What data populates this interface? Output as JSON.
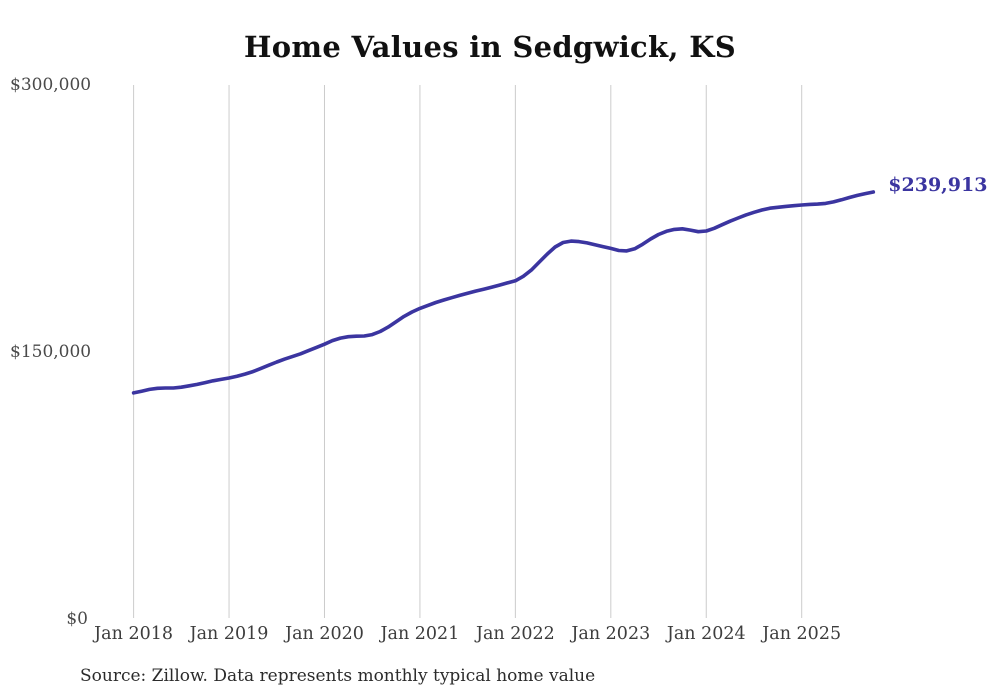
{
  "title": "Home Values in Sedgwick, KS",
  "source_note": "Source: Zillow. Data represents monthly typical home value",
  "colors": {
    "line": "#3b35a0",
    "end_label": "#3b35a0",
    "gridline": "#cccccc",
    "title_text": "#111111",
    "axis_text": "#4a4a4a"
  },
  "chart_data": {
    "type": "line",
    "title": "Home Values in Sedgwick, KS",
    "xlabel": "",
    "ylabel": "",
    "ylim": [
      0,
      300000
    ],
    "grid": "vertical-only",
    "legend": "none",
    "x_start_month": "Jan 2018",
    "x_end_month": "Oct 2025",
    "points_per_month": 1,
    "x_tick_labels": [
      "Jan 2018",
      "Jan 2019",
      "Jan 2020",
      "Jan 2021",
      "Jan 2022",
      "Jan 2023",
      "Jan 2024",
      "Jan 2025"
    ],
    "y_ticks": [
      {
        "label": "$0",
        "value": 0
      },
      {
        "label": "$150,000",
        "value": 150000
      },
      {
        "label": "$300,000",
        "value": 300000
      }
    ],
    "end_label": "$239,913",
    "final_value": 239913,
    "values": [
      127000,
      128000,
      129000,
      129600,
      129800,
      129800,
      130200,
      131000,
      131800,
      132800,
      133800,
      134600,
      135400,
      136400,
      137600,
      139000,
      140800,
      142600,
      144400,
      146000,
      147500,
      149000,
      150800,
      152600,
      154400,
      156400,
      157800,
      158600,
      158900,
      159000,
      159800,
      161500,
      164000,
      167000,
      170000,
      172500,
      174500,
      176200,
      177800,
      179200,
      180500,
      181800,
      183000,
      184200,
      185300,
      186400,
      187600,
      188800,
      190000,
      192500,
      196000,
      200500,
      205000,
      209000,
      211500,
      212300,
      212000,
      211300,
      210300,
      209200,
      208200,
      207000,
      206800,
      208000,
      210500,
      213500,
      216000,
      217800,
      218900,
      219200,
      218500,
      217600,
      218000,
      219500,
      221500,
      223500,
      225300,
      227000,
      228500,
      229800,
      230800,
      231300,
      231800,
      232200,
      232600,
      232900,
      233100,
      233500,
      234300,
      235500,
      236800,
      238000,
      239000,
      239913
    ]
  }
}
